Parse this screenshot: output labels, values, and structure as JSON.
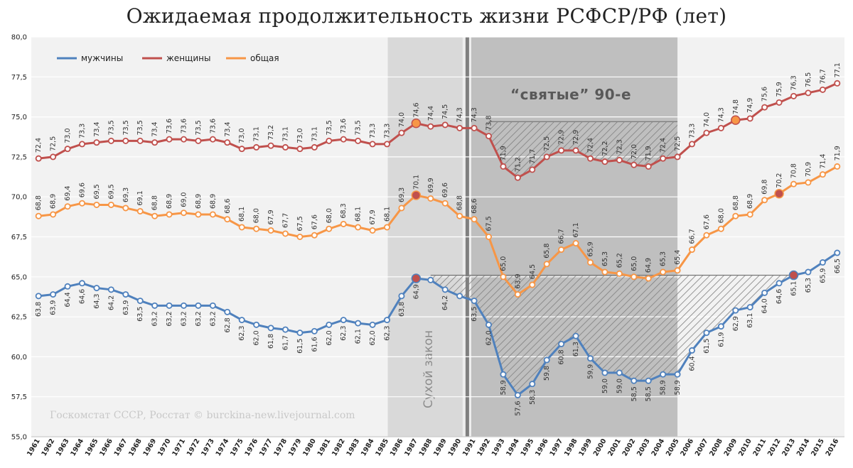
{
  "chart_data": {
    "type": "line",
    "title": "Ожидаемая продолжительность жизни РСФСР/РФ (лет)",
    "source": "Госкомстат СССР, Росстат © burckina-new.livejournal.com",
    "ylim": [
      55,
      80
    ],
    "yticks": [
      "55,0",
      "57,5",
      "60,0",
      "62,5",
      "65,0",
      "67,5",
      "70,0",
      "72,5",
      "75,0",
      "77,5",
      "80,0"
    ],
    "grid": true,
    "legend_position": "top-left",
    "x": [
      "1961",
      "1962",
      "1963",
      "1964",
      "1965",
      "1966",
      "1967",
      "1968",
      "1969",
      "1970",
      "1971",
      "1972",
      "1973",
      "1974",
      "1975",
      "1976",
      "1977",
      "1978",
      "1979",
      "1980",
      "1981",
      "1982",
      "1983",
      "1984",
      "1985",
      "1986",
      "1987",
      "1988",
      "1989",
      "1990",
      "1991",
      "1992",
      "1993",
      "1994",
      "1995",
      "1996",
      "1997",
      "1998",
      "1999",
      "2000",
      "2001",
      "2002",
      "2003",
      "2004",
      "2005",
      "2006",
      "2007",
      "2008",
      "2009",
      "2010",
      "2011",
      "2012",
      "2013",
      "2014",
      "2015",
      "2016"
    ],
    "series": [
      {
        "name": "мужчины",
        "color": "#4f81bd",
        "values": [
          63.8,
          63.9,
          64.4,
          64.6,
          64.3,
          64.2,
          63.9,
          63.5,
          63.2,
          63.2,
          63.2,
          63.2,
          63.2,
          62.8,
          62.3,
          62.0,
          61.8,
          61.7,
          61.5,
          61.6,
          62.0,
          62.3,
          62.1,
          62.0,
          62.3,
          63.8,
          64.9,
          64.8,
          64.2,
          63.8,
          63.5,
          62.0,
          58.9,
          57.6,
          58.3,
          59.8,
          60.8,
          61.3,
          59.9,
          59.0,
          59.0,
          58.5,
          58.5,
          58.9,
          58.9,
          60.4,
          61.5,
          61.9,
          62.9,
          63.1,
          64.0,
          64.6,
          65.1,
          65.3,
          65.9,
          66.5
        ],
        "labels": [
          "63,8",
          "63,9",
          "64,4",
          "64,6",
          "64,3",
          "64,2",
          "63,9",
          "63,5",
          "63,2",
          "63,2",
          "63,2",
          "63,2",
          "63,2",
          "62,8",
          "62,3",
          "62,0",
          "61,8",
          "61,7",
          "61,5",
          "61,6",
          "62,0",
          "62,3",
          "62,1",
          "62,0",
          "62,3",
          "63,8",
          "64,9",
          "",
          "64,2",
          "",
          "63,5",
          "62,0",
          "58,9",
          "57,6",
          "58,3",
          "59,8",
          "60,8",
          "61,3",
          "59,9",
          "59,0",
          "59,0",
          "58,5",
          "58,5",
          "58,9",
          "58,9",
          "60,4",
          "61,5",
          "61,9",
          "62,9",
          "63,1",
          "64,0",
          "64,6",
          "65,1",
          "65,3",
          "65,9",
          "66,5"
        ]
      },
      {
        "name": "женщины",
        "color": "#c0504d",
        "values": [
          72.4,
          72.5,
          73.0,
          73.3,
          73.4,
          73.5,
          73.5,
          73.5,
          73.4,
          73.6,
          73.6,
          73.5,
          73.6,
          73.4,
          73.0,
          73.1,
          73.2,
          73.1,
          73.0,
          73.1,
          73.5,
          73.6,
          73.5,
          73.3,
          73.3,
          74.0,
          74.6,
          74.4,
          74.5,
          74.3,
          74.3,
          73.8,
          71.9,
          71.2,
          71.7,
          72.5,
          72.9,
          72.9,
          72.4,
          72.2,
          72.3,
          72.0,
          71.9,
          72.4,
          72.5,
          73.3,
          74.0,
          74.3,
          74.8,
          74.9,
          75.6,
          75.9,
          76.3,
          76.5,
          76.7,
          77.1
        ],
        "labels": [
          "72,4",
          "72,5",
          "73,0",
          "73,3",
          "73,4",
          "73,5",
          "73,5",
          "73,5",
          "73,4",
          "73,6",
          "73,6",
          "73,5",
          "73,6",
          "73,4",
          "73,0",
          "73,1",
          "73,2",
          "73,1",
          "73,0",
          "73,1",
          "73,5",
          "73,6",
          "73,5",
          "73,3",
          "73,3",
          "74,0",
          "74,6",
          "74,4",
          "74,5",
          "74,3",
          "74,3",
          "73,8",
          "71,9",
          "71,2",
          "71,7",
          "72,5",
          "72,9",
          "72,9",
          "72,4",
          "72,2",
          "72,3",
          "72,0",
          "71,9",
          "72,4",
          "72,5",
          "73,3",
          "74,0",
          "74,3",
          "74,8",
          "74,9",
          "75,6",
          "75,9",
          "76,3",
          "76,5",
          "76,7",
          "77,1"
        ]
      },
      {
        "name": "общая",
        "color": "#f79646",
        "values": [
          68.8,
          68.9,
          69.4,
          69.6,
          69.5,
          69.5,
          69.3,
          69.1,
          68.8,
          68.9,
          69.0,
          68.9,
          68.9,
          68.6,
          68.1,
          68.0,
          67.9,
          67.7,
          67.5,
          67.6,
          68.0,
          68.3,
          68.1,
          67.9,
          68.1,
          69.3,
          70.1,
          69.9,
          69.6,
          68.8,
          68.6,
          67.5,
          65.0,
          63.9,
          64.5,
          65.8,
          66.7,
          67.1,
          65.9,
          65.3,
          65.2,
          65.0,
          64.9,
          65.3,
          65.4,
          66.7,
          67.6,
          68.0,
          68.8,
          68.9,
          69.8,
          70.2,
          70.8,
          70.9,
          71.4,
          71.9
        ],
        "labels": [
          "68,8",
          "68,9",
          "69,4",
          "69,6",
          "69,5",
          "69,5",
          "69,3",
          "69,1",
          "68,8",
          "68,9",
          "69,0",
          "68,9",
          "68,9",
          "68,6",
          "68,1",
          "68,0",
          "67,9",
          "67,7",
          "67,5",
          "67,6",
          "68,0",
          "68,3",
          "68,1",
          "67,9",
          "68,1",
          "69,3",
          "70,1",
          "69,9",
          "69,6",
          "68,8",
          "68,6",
          "67,5",
          "65,0",
          "63,9",
          "64,5",
          "65,8",
          "66,7",
          "67,1",
          "65,9",
          "65,3",
          "65,2",
          "65,0",
          "64,9",
          "65,3",
          "65,4",
          "66,7",
          "67,6",
          "68,0",
          "68,8",
          "68,9",
          "69,8",
          "70,2",
          "70,8",
          "70,9",
          "71,4",
          "71,9"
        ]
      }
    ],
    "highlight_points": [
      {
        "series": 0,
        "year": "1987"
      },
      {
        "series": 1,
        "year": "1987"
      },
      {
        "series": 2,
        "year": "1987"
      },
      {
        "series": 0,
        "year": "2013"
      },
      {
        "series": 1,
        "year": "2009"
      },
      {
        "series": 2,
        "year": "2012"
      }
    ],
    "bands": [
      {
        "label": "Сухой закон",
        "from": "1985",
        "to": "1991",
        "fill": "#d9d9d9"
      },
      {
        "label": "“святые” 90-е",
        "from": "1991",
        "to": "2005",
        "fill": "#bfbfbf"
      }
    ],
    "hatch_regions": [
      {
        "series": 1,
        "level": 74.7,
        "from": "1992",
        "to": "2005"
      },
      {
        "series": 0,
        "level": 65.1,
        "from": "1988",
        "to": "2013"
      }
    ],
    "marker_line": {
      "from": "1990",
      "to": "1991",
      "fill": "#808080"
    }
  }
}
